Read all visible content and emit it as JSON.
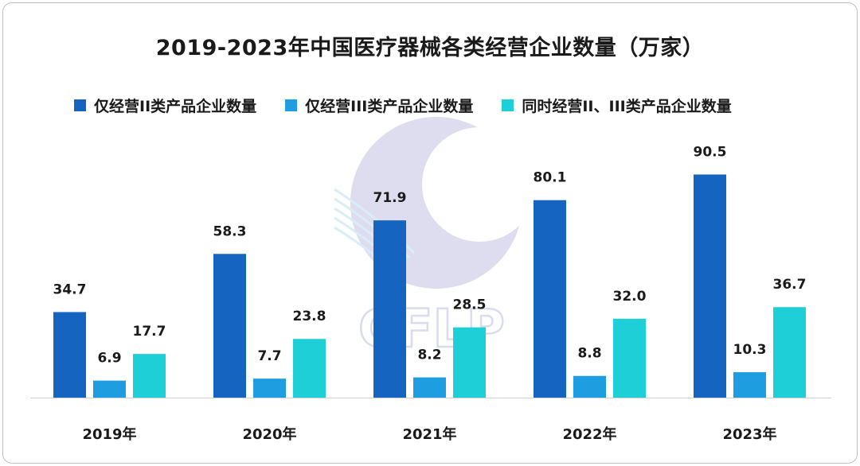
{
  "chart_data": {
    "type": "bar",
    "title": "2019-2023年中国医疗器械各类经营企业数量（万家）",
    "categories": [
      "2019年",
      "2020年",
      "2021年",
      "2022年",
      "2023年"
    ],
    "series": [
      {
        "name": "仅经营II类产品企业数量",
        "values": [
          34.7,
          58.3,
          71.9,
          80.1,
          90.5
        ],
        "labels": [
          "34.7",
          "58.3",
          "71.9",
          "80.1",
          "90.5"
        ],
        "color": "#1565c0"
      },
      {
        "name": "仅经营III类产品企业数量",
        "values": [
          6.9,
          7.7,
          8.2,
          8.8,
          10.3
        ],
        "labels": [
          "6.9",
          "7.7",
          "8.2",
          "8.8",
          "10.3"
        ],
        "color": "#1e9ee0"
      },
      {
        "name": "同时经营II、III类产品企业数量",
        "values": [
          17.7,
          23.8,
          28.5,
          32.0,
          36.7
        ],
        "labels": [
          "17.7",
          "23.8",
          "28.5",
          "32.0",
          "36.7"
        ],
        "color": "#1ecfd8"
      }
    ],
    "xlabel": "",
    "ylabel": "",
    "ylim": [
      0,
      100
    ],
    "grid": false,
    "legend_position": "top-left"
  },
  "watermark": {
    "text": "CFLP",
    "color": "#d9dcef"
  }
}
